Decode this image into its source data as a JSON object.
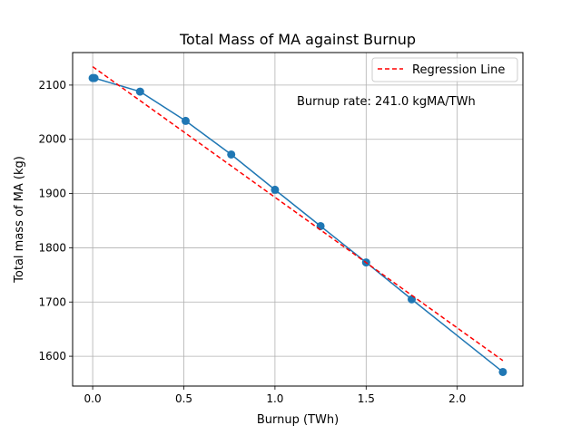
{
  "chart_data": {
    "type": "line",
    "title": "Total Mass of MA against Burnup",
    "xlabel": "Burnup (TWh)",
    "ylabel": "Total mass of MA (kg)",
    "xlim": [
      -0.11,
      2.36
    ],
    "ylim": [
      1545,
      2160
    ],
    "x_ticks": [
      0.0,
      0.5,
      1.0,
      1.5,
      2.0
    ],
    "x_tick_labels": [
      "0.0",
      "0.5",
      "1.0",
      "1.5",
      "2.0"
    ],
    "y_ticks": [
      1600,
      1700,
      1800,
      1900,
      2000,
      2100
    ],
    "y_tick_labels": [
      "1600",
      "1700",
      "1800",
      "1900",
      "2000",
      "2100"
    ],
    "grid": true,
    "legend_position": "top-right",
    "series": [
      {
        "kind": "line-markers",
        "color": "#1f77b4",
        "x": [
          0.0,
          0.01,
          0.26,
          0.51,
          0.76,
          1.0,
          1.25,
          1.5,
          1.75,
          2.25
        ],
        "y": [
          2113,
          2113,
          2088,
          2034,
          1972,
          1907,
          1840,
          1773,
          1705,
          1571
        ]
      },
      {
        "kind": "dashed-line",
        "name": "Regression Line",
        "color": "#ff0000",
        "x": [
          0.0,
          2.25
        ],
        "y": [
          2134,
          1592
        ]
      }
    ],
    "annotation": {
      "text": "Burnup rate: 241.0 kgMA/TWh",
      "x": 1.12,
      "y": 2070
    }
  }
}
